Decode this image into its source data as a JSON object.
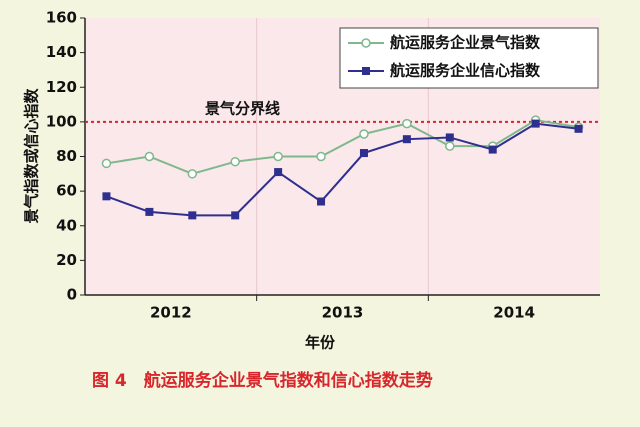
{
  "chart_data": {
    "type": "line",
    "caption": "图 4　航运服务企业景气指数和信心指数走势",
    "xlabel": "年份",
    "ylabel": "景气指数或信心指数",
    "x": [
      2012.125,
      2012.375,
      2012.625,
      2012.875,
      2013.125,
      2013.375,
      2013.625,
      2013.875,
      2014.125,
      2014.375,
      2014.625,
      2014.875
    ],
    "xlim": [
      2012,
      2015
    ],
    "xticks": [
      {
        "value": 2012.5,
        "label": "2012"
      },
      {
        "value": 2013.5,
        "label": "2013"
      },
      {
        "value": 2014.5,
        "label": "2014"
      }
    ],
    "xgrid": [
      2013,
      2014
    ],
    "ylim": [
      0,
      160
    ],
    "yticks": [
      0,
      20,
      40,
      60,
      80,
      100,
      120,
      140,
      160
    ],
    "reference": {
      "value": 100,
      "label": "景气分界线",
      "color": "#e0202a"
    },
    "series": [
      {
        "name": "航运服务企业景气指数",
        "color": "#7fb88c",
        "marker": "open",
        "values": [
          76,
          80,
          70,
          77,
          80,
          80,
          93,
          99,
          86,
          86,
          101,
          97
        ]
      },
      {
        "name": "航运服务企业信心指数",
        "color": "#2e2f8e",
        "marker": "square",
        "values": [
          57,
          48,
          46,
          46,
          71,
          54,
          82,
          90,
          91,
          84,
          99,
          96
        ]
      }
    ]
  }
}
